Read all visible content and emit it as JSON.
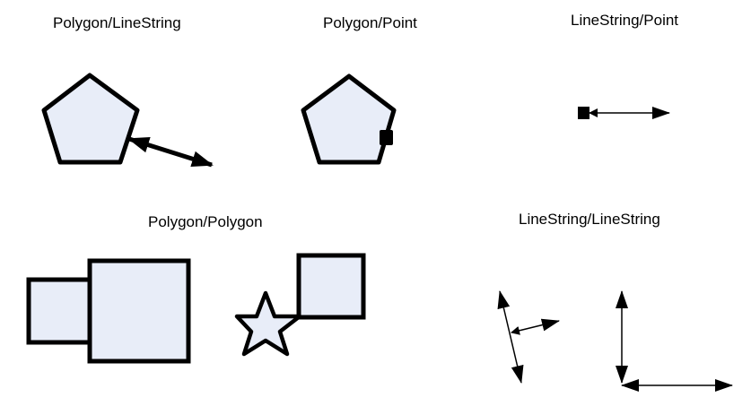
{
  "panels": {
    "polygon_linestring": {
      "title": "Polygon/LineString"
    },
    "polygon_point": {
      "title": "Polygon/Point"
    },
    "linestring_point": {
      "title": "LineString/Point"
    },
    "polygon_polygon": {
      "title": "Polygon/Polygon"
    },
    "linestring_linestring": {
      "title": "LineString/LineString"
    }
  },
  "colors": {
    "shape_fill": "#e8edf8",
    "stroke": "#000000",
    "background": "#ffffff"
  }
}
